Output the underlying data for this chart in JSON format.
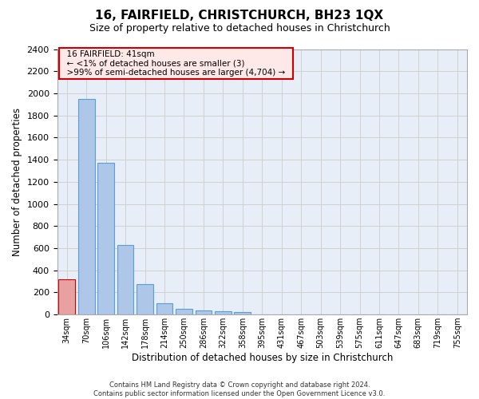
{
  "title": "16, FAIRFIELD, CHRISTCHURCH, BH23 1QX",
  "subtitle": "Size of property relative to detached houses in Christchurch",
  "xlabel": "Distribution of detached houses by size in Christchurch",
  "ylabel": "Number of detached properties",
  "footer_line1": "Contains HM Land Registry data © Crown copyright and database right 2024.",
  "footer_line2": "Contains public sector information licensed under the Open Government Licence v3.0.",
  "annotation_title": "16 FAIRFIELD: 41sqm",
  "annotation_line2": "← <1% of detached houses are smaller (3)",
  "annotation_line3": ">99% of semi-detached houses are larger (4,704) →",
  "bar_categories": [
    "34sqm",
    "70sqm",
    "106sqm",
    "142sqm",
    "178sqm",
    "214sqm",
    "250sqm",
    "286sqm",
    "322sqm",
    "358sqm",
    "395sqm",
    "431sqm",
    "467sqm",
    "503sqm",
    "539sqm",
    "575sqm",
    "611sqm",
    "647sqm",
    "683sqm",
    "719sqm",
    "755sqm"
  ],
  "bar_values": [
    320,
    1950,
    1370,
    630,
    275,
    100,
    50,
    35,
    30,
    22,
    0,
    0,
    0,
    0,
    0,
    0,
    0,
    0,
    0,
    0,
    0
  ],
  "bar_color": "#aec6e8",
  "bar_edge_color": "#5a9fd4",
  "highlight_bar_index": 0,
  "highlight_color": "#e8a0a0",
  "highlight_edge_color": "#cc0000",
  "annotation_box_facecolor": "#ffe8e8",
  "annotation_box_edge": "#cc0000",
  "ylim": [
    0,
    2400
  ],
  "yticks": [
    0,
    200,
    400,
    600,
    800,
    1000,
    1200,
    1400,
    1600,
    1800,
    2000,
    2200,
    2400
  ],
  "grid_color": "#cccccc",
  "background_color": "#e8eef8",
  "title_fontsize": 11,
  "subtitle_fontsize": 9
}
